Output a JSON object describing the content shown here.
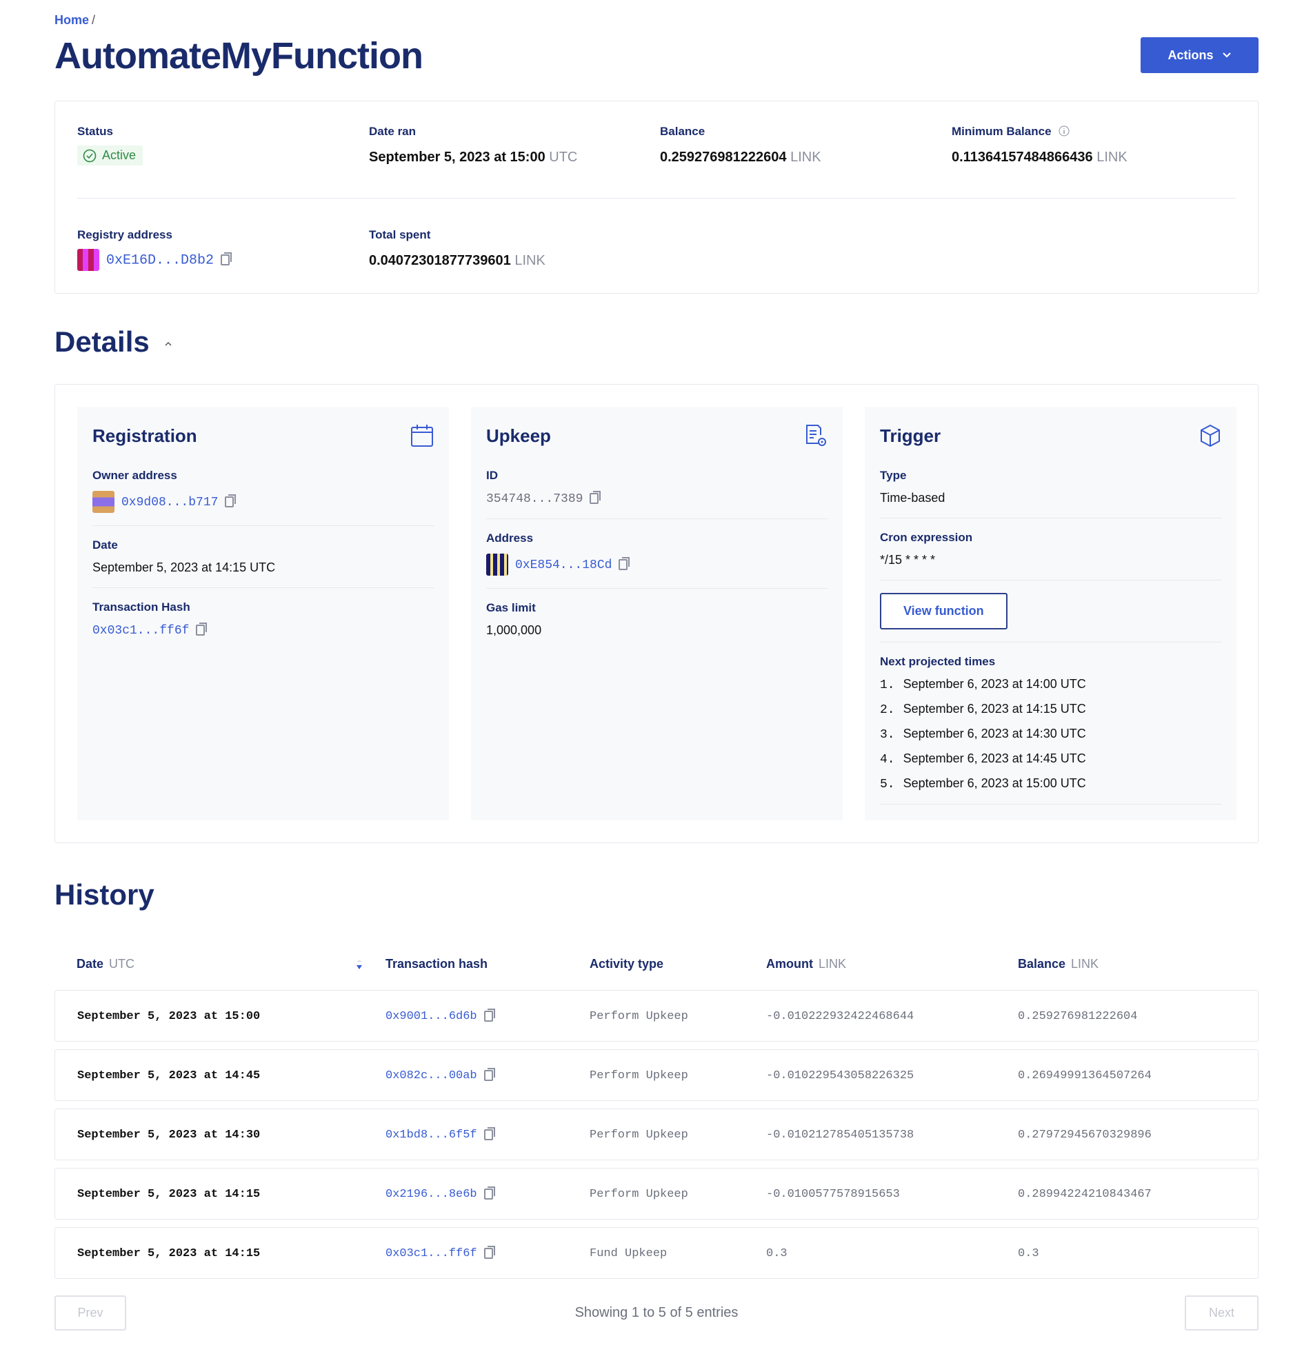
{
  "breadcrumb": {
    "home": "Home",
    "separator": "/"
  },
  "page_title": "AutomateMyFunction",
  "actions_label": "Actions",
  "summary": {
    "status_label": "Status",
    "status_value": "Active",
    "date_ran_label": "Date ran",
    "date_ran_value": "September 5, 2023 at 15:00",
    "date_ran_unit": "UTC",
    "balance_label": "Balance",
    "balance_value": "0.259276981222604",
    "balance_unit": "LINK",
    "min_balance_label": "Minimum Balance",
    "min_balance_value": "0.11364157484866436",
    "min_balance_unit": "LINK",
    "registry_label": "Registry address",
    "registry_value": "0xE16D...D8b2",
    "total_spent_label": "Total spent",
    "total_spent_value": "0.04072301877739601",
    "total_spent_unit": "LINK"
  },
  "details": {
    "title": "Details",
    "registration": {
      "title": "Registration",
      "owner_label": "Owner address",
      "owner_value": "0x9d08...b717",
      "date_label": "Date",
      "date_value": "September 5, 2023 at 14:15 UTC",
      "tx_label": "Transaction Hash",
      "tx_value": "0x03c1...ff6f"
    },
    "upkeep": {
      "title": "Upkeep",
      "id_label": "ID",
      "id_value": "354748...7389",
      "address_label": "Address",
      "address_value": "0xE854...18Cd",
      "gas_label": "Gas limit",
      "gas_value": "1,000,000"
    },
    "trigger": {
      "title": "Trigger",
      "type_label": "Type",
      "type_value": "Time-based",
      "cron_label": "Cron expression",
      "cron_value": "*/15 * * * *",
      "view_function": "View function",
      "next_label": "Next projected times",
      "times": [
        {
          "n": "1.",
          "t": "September 6, 2023 at 14:00 UTC"
        },
        {
          "n": "2.",
          "t": "September 6, 2023 at 14:15 UTC"
        },
        {
          "n": "3.",
          "t": "September 6, 2023 at 14:30 UTC"
        },
        {
          "n": "4.",
          "t": "September 6, 2023 at 14:45 UTC"
        },
        {
          "n": "5.",
          "t": "September 6, 2023 at 15:00 UTC"
        }
      ]
    }
  },
  "history": {
    "title": "History",
    "columns": {
      "date": "Date",
      "date_unit": "UTC",
      "hash": "Transaction hash",
      "activity": "Activity type",
      "amount": "Amount",
      "amount_unit": "LINK",
      "balance": "Balance",
      "balance_unit": "LINK"
    },
    "rows": [
      {
        "date": "September 5, 2023 at 15:00",
        "hash": "0x9001...6d6b",
        "activity": "Perform Upkeep",
        "amount": "-0.010222932422468644",
        "balance": "0.259276981222604"
      },
      {
        "date": "September 5, 2023 at 14:45",
        "hash": "0x082c...00ab",
        "activity": "Perform Upkeep",
        "amount": "-0.010229543058226325",
        "balance": "0.26949991364507264"
      },
      {
        "date": "September 5, 2023 at 14:30",
        "hash": "0x1bd8...6f5f",
        "activity": "Perform Upkeep",
        "amount": "-0.010212785405135738",
        "balance": "0.27972945670329896"
      },
      {
        "date": "September 5, 2023 at 14:15",
        "hash": "0x2196...8e6b",
        "activity": "Perform Upkeep",
        "amount": "-0.0100577578915653",
        "balance": "0.28994224210843467"
      },
      {
        "date": "September 5, 2023 at 14:15",
        "hash": "0x03c1...ff6f",
        "activity": "Fund Upkeep",
        "amount": "0.3",
        "balance": "0.3"
      }
    ],
    "prev": "Prev",
    "next": "Next",
    "showing": "Showing 1 to 5 of 5 entries"
  },
  "colors": {
    "accent": "#375bd2",
    "heading": "#1a2b6b",
    "success": "#2f8a44"
  }
}
